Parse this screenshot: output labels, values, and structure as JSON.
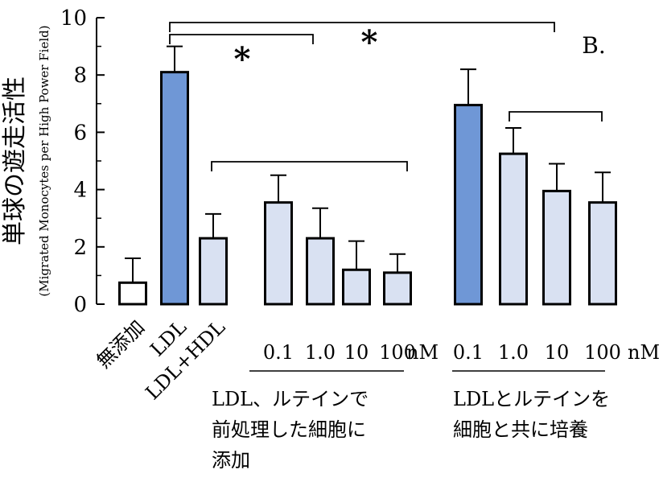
{
  "chart_data": {
    "type": "bar",
    "ylim": [
      0,
      10
    ],
    "yticks": [
      "0",
      "2",
      "4",
      "6",
      "8",
      "10"
    ],
    "ylabel": "単球の遊走活性",
    "ylabel_sub": "(Migrated Monocytes per High Power Field)",
    "panel_label": "B.",
    "bars": [
      {
        "label": "無添加",
        "value": 0.75,
        "error": 0.85,
        "color": "#ffffff"
      },
      {
        "label": "LDL",
        "value": 8.1,
        "error": 0.9,
        "color": "#6f97d6"
      },
      {
        "label": "LDL+HDL",
        "value": 2.3,
        "error": 0.85,
        "color": "#d9e1f2"
      },
      {
        "label": "0.1",
        "value": 3.55,
        "error": 0.95,
        "color": "#d9e1f2"
      },
      {
        "label": "1.0",
        "value": 2.3,
        "error": 1.05,
        "color": "#d9e1f2"
      },
      {
        "label": "10",
        "value": 1.2,
        "error": 1.0,
        "color": "#d9e1f2"
      },
      {
        "label": "100",
        "value": 1.1,
        "error": 0.65,
        "color": "#d9e1f2"
      },
      {
        "label": "0.1",
        "value": 6.95,
        "error": 1.25,
        "color": "#6f97d6"
      },
      {
        "label": "1.0",
        "value": 5.25,
        "error": 0.9,
        "color": "#d9e1f2"
      },
      {
        "label": "10",
        "value": 3.95,
        "error": 0.95,
        "color": "#d9e1f2"
      },
      {
        "label": "100",
        "value": 3.55,
        "error": 1.05,
        "color": "#d9e1f2"
      }
    ],
    "unit": "nM",
    "group_labels": {
      "group1": [
        "LDL、ルテインで",
        "前処理した細胞に",
        "添加"
      ],
      "group2": [
        "LDLとルテインを",
        "細胞と共に培養"
      ]
    },
    "significance": [
      "*",
      "*"
    ]
  }
}
